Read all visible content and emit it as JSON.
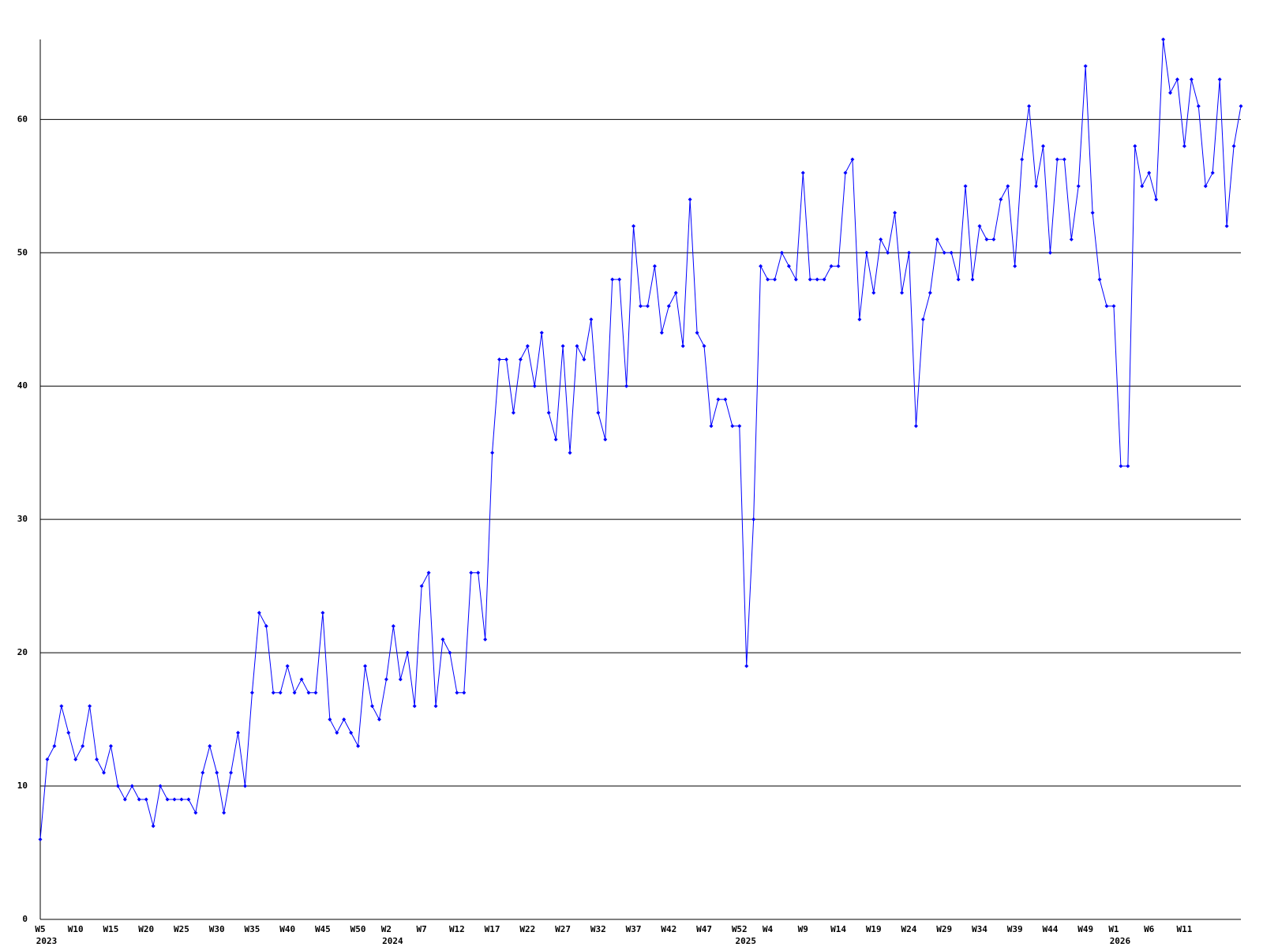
{
  "chart_data": {
    "type": "line",
    "categories": [
      "W5",
      null,
      null,
      null,
      null,
      "W10",
      null,
      null,
      null,
      null,
      "W15",
      null,
      null,
      null,
      null,
      "W20",
      null,
      null,
      null,
      null,
      "W25",
      null,
      null,
      null,
      null,
      "W30",
      null,
      null,
      null,
      null,
      "W35",
      null,
      null,
      null,
      null,
      "W40",
      null,
      null,
      null,
      null,
      "W45",
      null,
      null,
      null,
      null,
      "W50",
      null,
      null,
      null,
      "W2",
      null,
      null,
      null,
      null,
      "W7",
      null,
      null,
      null,
      null,
      "W12",
      null,
      null,
      null,
      null,
      "W17",
      null,
      null,
      null,
      null,
      "W22",
      null,
      null,
      null,
      null,
      "W27",
      null,
      null,
      null,
      null,
      "W32",
      null,
      null,
      null,
      null,
      "W37",
      null,
      null,
      null,
      null,
      "W42",
      null,
      null,
      null,
      null,
      "W47",
      null,
      null,
      null,
      null,
      "W52",
      null,
      null,
      null,
      "W4",
      null,
      null,
      null,
      null,
      "W9",
      null,
      null,
      null,
      null,
      "W14",
      null,
      null,
      null,
      null,
      "W19",
      null,
      null,
      null,
      null,
      "W24",
      null,
      null,
      null,
      null,
      "W29",
      null,
      null,
      null,
      null,
      "W34",
      null,
      null,
      null,
      null,
      "W39",
      null,
      null,
      null,
      null,
      "W44",
      null,
      null,
      null,
      null,
      "W49",
      null,
      null,
      null,
      "W1",
      null,
      null,
      null,
      null,
      "W6",
      null,
      null,
      null,
      null,
      "W11",
      null,
      null,
      null,
      null,
      null,
      null,
      null,
      null
    ],
    "year_labels": [
      "2023",
      null,
      null,
      null,
      null,
      null,
      null,
      null,
      null,
      null,
      null,
      null,
      null,
      null,
      null,
      null,
      null,
      null,
      null,
      null,
      null,
      null,
      null,
      null,
      null,
      null,
      null,
      null,
      null,
      null,
      null,
      null,
      null,
      null,
      null,
      null,
      null,
      null,
      null,
      null,
      null,
      null,
      null,
      null,
      null,
      null,
      null,
      null,
      null,
      "2024",
      null,
      null,
      null,
      null,
      null,
      null,
      null,
      null,
      null,
      null,
      null,
      null,
      null,
      null,
      null,
      null,
      null,
      null,
      null,
      null,
      null,
      null,
      null,
      null,
      null,
      null,
      null,
      null,
      null,
      null,
      null,
      null,
      null,
      null,
      null,
      null,
      null,
      null,
      null,
      null,
      null,
      null,
      null,
      null,
      null,
      null,
      null,
      null,
      null,
      "2025",
      null,
      null,
      null,
      null,
      null,
      null,
      null,
      null,
      null,
      null,
      null,
      null,
      null,
      null,
      null,
      null,
      null,
      null,
      null,
      null,
      null,
      null,
      null,
      null,
      null,
      null,
      null,
      null,
      null,
      null,
      null,
      null,
      null,
      null,
      null,
      null,
      null,
      null,
      null,
      null,
      null,
      null,
      null,
      null,
      null,
      null,
      null,
      null,
      null,
      null,
      null,
      null,
      "2026",
      null,
      null,
      null,
      null,
      null,
      null,
      null,
      null,
      null,
      null,
      null,
      null,
      null,
      null,
      null,
      null,
      null,
      null
    ],
    "values": [
      6,
      12,
      13,
      16,
      14,
      12,
      13,
      16,
      12,
      11,
      13,
      10,
      9,
      10,
      9,
      9,
      7,
      10,
      9,
      9,
      9,
      9,
      8,
      11,
      13,
      11,
      8,
      11,
      14,
      10,
      17,
      23,
      22,
      17,
      17,
      19,
      17,
      18,
      17,
      17,
      23,
      15,
      14,
      15,
      14,
      13,
      19,
      16,
      15,
      18,
      22,
      18,
      20,
      16,
      25,
      26,
      16,
      21,
      20,
      17,
      17,
      26,
      26,
      21,
      35,
      42,
      42,
      38,
      42,
      43,
      40,
      44,
      38,
      36,
      43,
      35,
      43,
      42,
      45,
      38,
      36,
      48,
      48,
      40,
      52,
      46,
      46,
      49,
      44,
      46,
      47,
      43,
      54,
      44,
      43,
      37,
      39,
      39,
      37,
      37,
      19,
      30,
      49,
      48,
      48,
      50,
      49,
      48,
      56,
      48,
      48,
      48,
      49,
      49,
      56,
      57,
      45,
      50,
      47,
      51,
      50,
      53,
      47,
      50,
      37,
      45,
      47,
      51,
      50,
      50,
      48,
      55,
      48,
      52,
      51,
      51,
      54,
      55,
      49,
      57,
      61,
      55,
      58,
      50,
      57,
      57,
      51,
      55,
      64,
      53,
      48,
      46,
      46,
      34,
      34,
      58,
      55,
      56,
      54,
      66,
      62,
      63,
      58,
      63,
      61,
      55,
      56,
      63,
      52,
      58,
      61
    ],
    "color": "#0000ff",
    "ylim": [
      0,
      66
    ],
    "yticks": [
      0,
      10,
      20,
      30,
      40,
      50,
      60
    ],
    "grid": true
  }
}
